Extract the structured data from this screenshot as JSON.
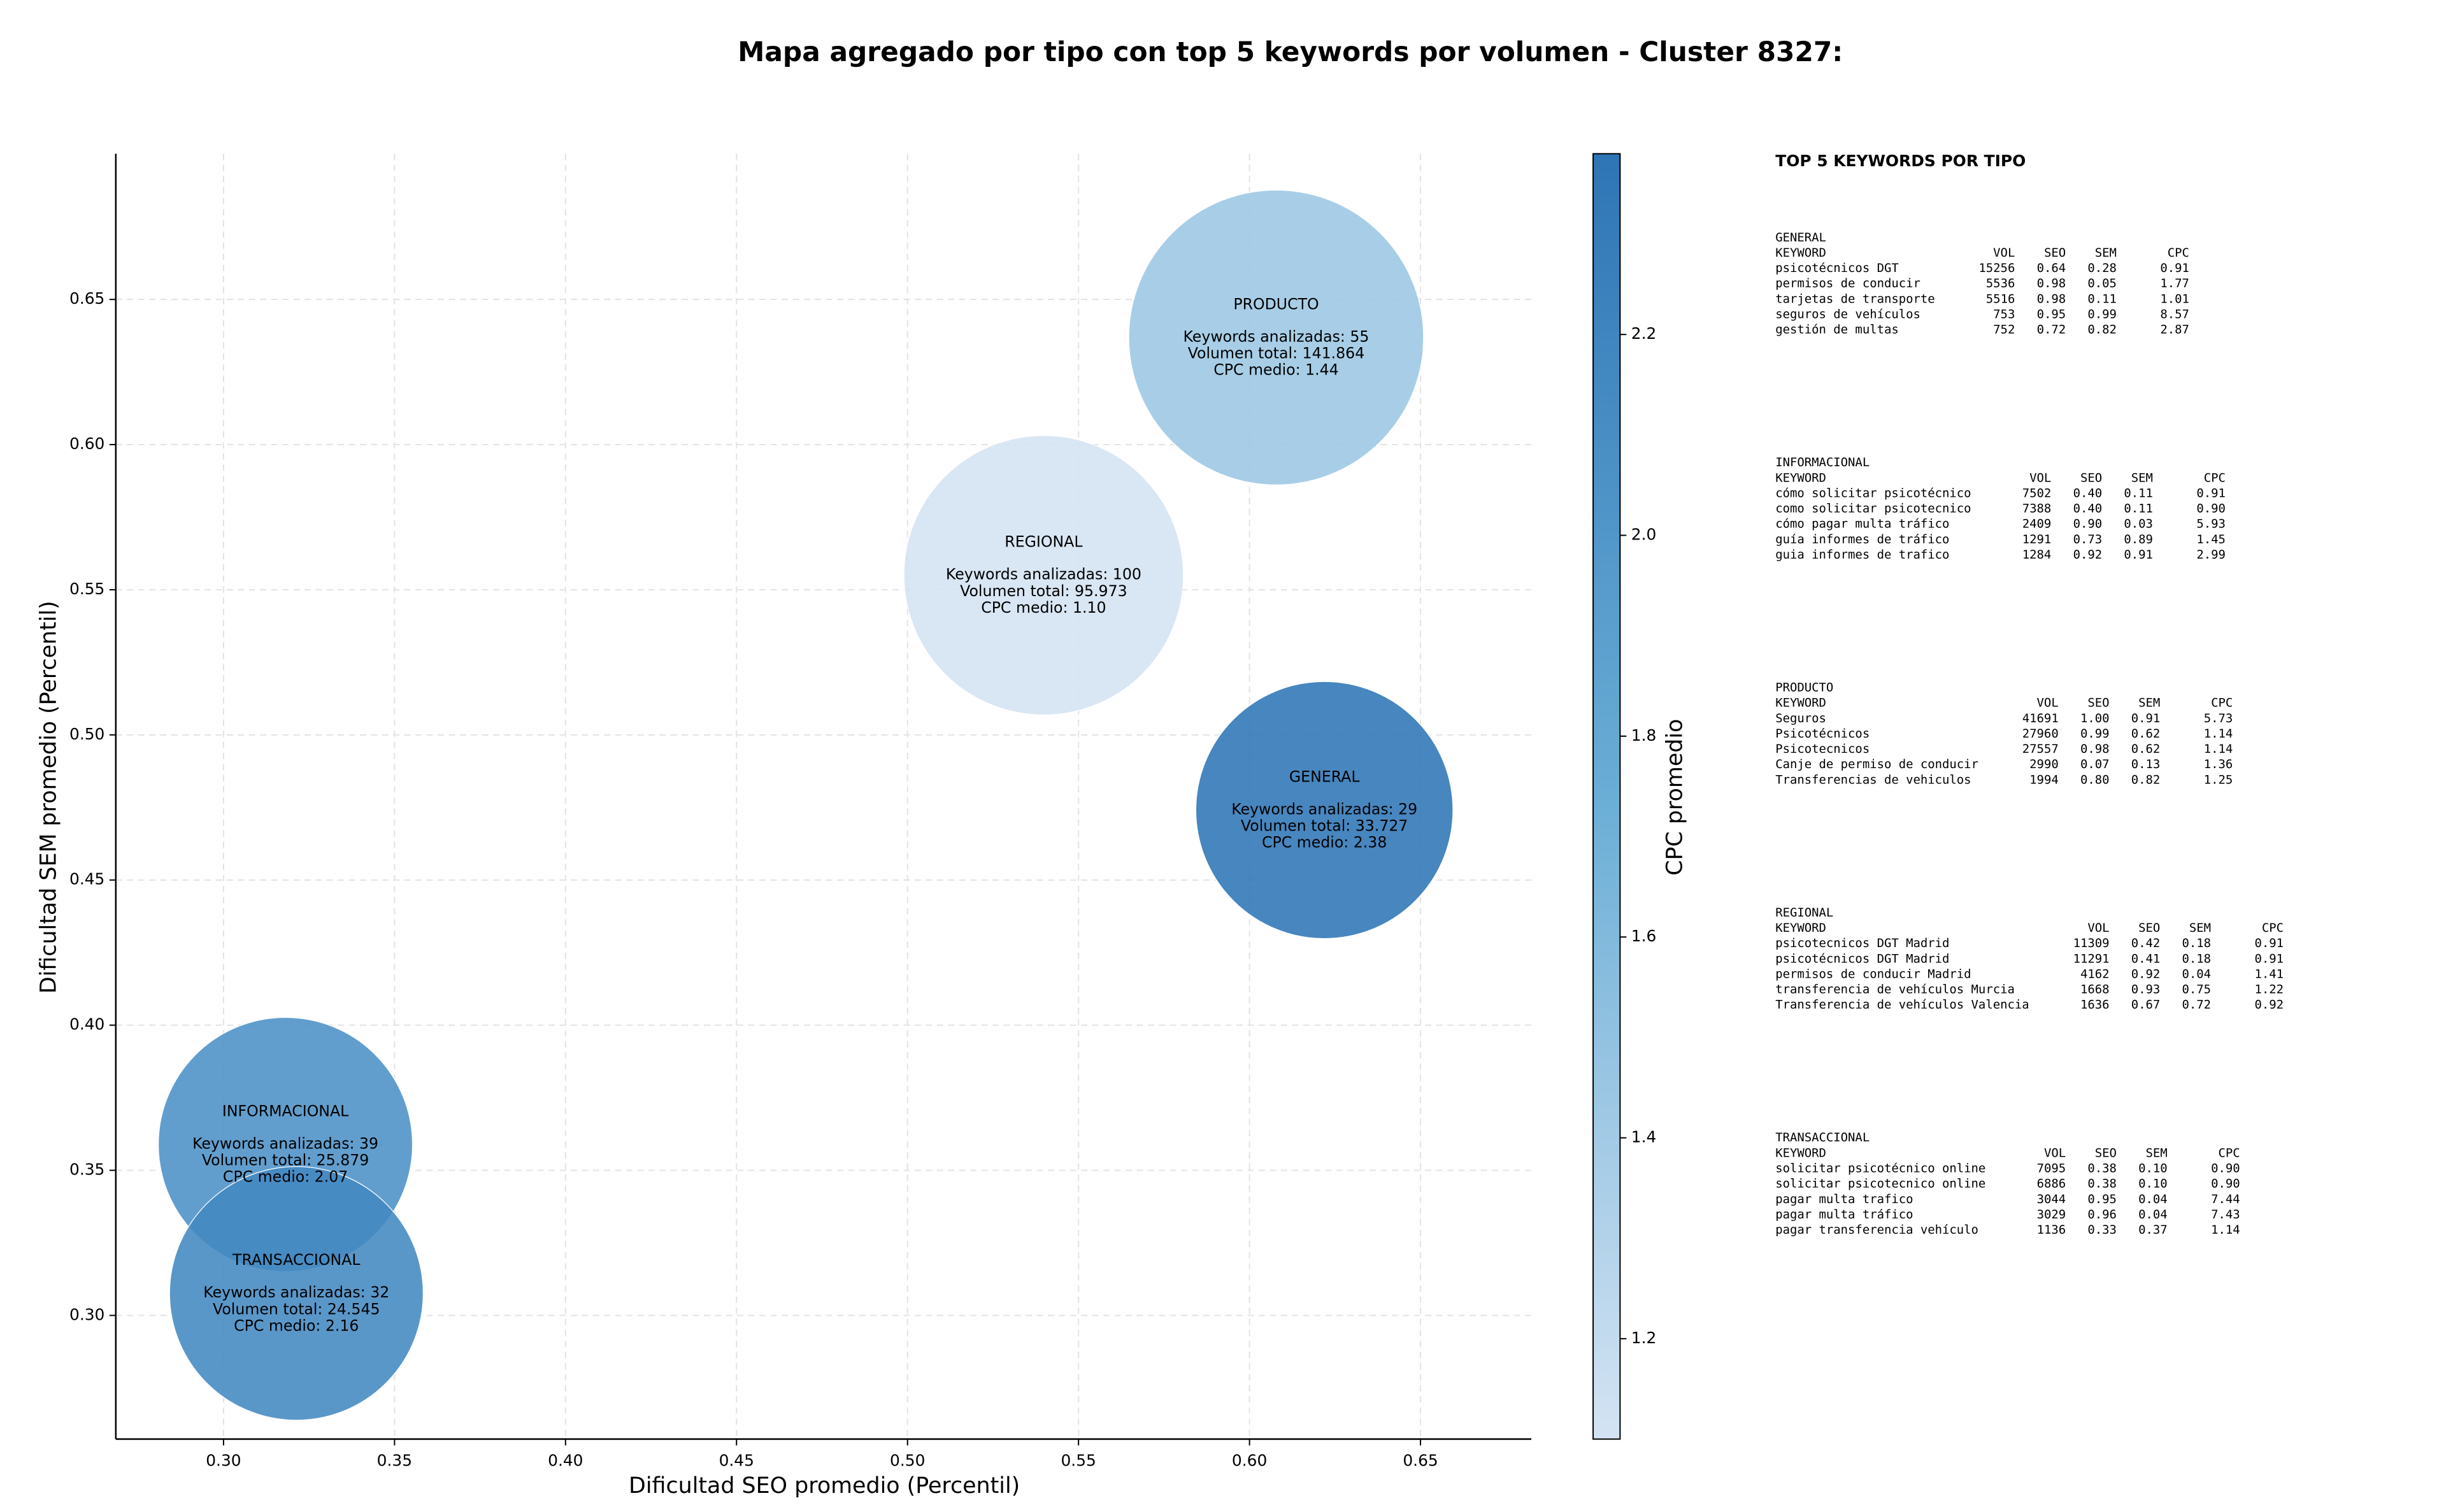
{
  "chart_data": {
    "type": "bubble",
    "title": "Mapa agregado por tipo con top 5 keywords por volumen - Cluster 8327:",
    "x_label": "Dificultad SEO promedio (Percentil)",
    "y_label": "Dificultad SEM promedio (Percentil)",
    "colorbar_label": "CPC promedio",
    "xlim": [
      0.2685,
      0.6824
    ],
    "ylim": [
      0.2574,
      0.7002
    ],
    "clim": [
      1.1,
      2.38
    ],
    "colormap": [
      "#d4e3f3",
      "#6aaed6",
      "#2e75b6"
    ],
    "grid": true,
    "xticks": [
      {
        "value": 0.3,
        "label": "0.30"
      },
      {
        "value": 0.35,
        "label": "0.35"
      },
      {
        "value": 0.4,
        "label": "0.40"
      },
      {
        "value": 0.45,
        "label": "0.45"
      },
      {
        "value": 0.5,
        "label": "0.50"
      },
      {
        "value": 0.55,
        "label": "0.55"
      },
      {
        "value": 0.6,
        "label": "0.60"
      },
      {
        "value": 0.65,
        "label": "0.65"
      }
    ],
    "yticks": [
      {
        "value": 0.3,
        "label": "0.30"
      },
      0.35,
      {
        "value": 0.4,
        "label": "0.40"
      },
      0.45,
      {
        "value": 0.5,
        "label": "0.50"
      },
      0.55,
      {
        "value": 0.6,
        "label": "0.60"
      },
      0.65
    ],
    "cticks": [
      1.2,
      1.4,
      1.6,
      1.8,
      {
        "value": 2,
        "label": "2.0"
      },
      2.2
    ],
    "points": [
      {
        "name": "PRODUCTO",
        "x": 0.6078,
        "y": 0.6369,
        "size": 141864,
        "cpc": 1.44,
        "lines": [
          "Keywords analizadas: 55",
          "Volumen total: 141.864",
          "CPC medio: 1.44"
        ]
      },
      {
        "name": "REGIONAL",
        "x": 0.5398,
        "y": 0.555,
        "size": 95973,
        "cpc": 1.1,
        "lines": [
          "Keywords analizadas: 100",
          "Volumen total: 95.973",
          "CPC medio: 1.10"
        ]
      },
      {
        "name": "GENERAL",
        "x": 0.6219,
        "y": 0.4741,
        "size": 33727,
        "cpc": 2.38,
        "lines": [
          "Keywords analizadas: 29",
          "Volumen total: 33.727",
          "CPC medio: 2.38"
        ]
      },
      {
        "name": "INFORMACIONAL",
        "x": 0.3181,
        "y": 0.3589,
        "size": 25879,
        "cpc": 2.07,
        "lines": [
          "Keywords analizadas: 39",
          "Volumen total: 25.879",
          "CPC medio: 2.07"
        ]
      },
      {
        "name": "TRANSACCIONAL",
        "x": 0.3213,
        "y": 0.3076,
        "size": 24545,
        "cpc": 2.16,
        "lines": [
          "Keywords analizadas: 32",
          "Volumen total: 24.545",
          "CPC medio: 2.16"
        ]
      }
    ]
  },
  "keyword_panel": {
    "title": "TOP 5 KEYWORDS POR TIPO",
    "columns": [
      "KEYWORD",
      "VOL",
      "SEO",
      "SEM",
      "CPC"
    ],
    "groups": [
      {
        "name": "GENERAL",
        "rows": [
          [
            "psicotécnicos DGT",
            "15256",
            "0.64",
            "0.28",
            "0.91"
          ],
          [
            "permisos de conducir",
            "5536",
            "0.98",
            "0.05",
            "1.77"
          ],
          [
            "tarjetas de transporte",
            "5516",
            "0.98",
            "0.11",
            "1.01"
          ],
          [
            "seguros de vehículos",
            "753",
            "0.95",
            "0.99",
            "8.57"
          ],
          [
            "gestión de multas",
            "752",
            "0.72",
            "0.82",
            "2.87"
          ]
        ]
      },
      {
        "name": "INFORMACIONAL",
        "rows": [
          [
            "cómo solicitar psicotécnico",
            "7502",
            "0.40",
            "0.11",
            "0.91"
          ],
          [
            "como solicitar psicotecnico",
            "7388",
            "0.40",
            "0.11",
            "0.90"
          ],
          [
            "cómo pagar multa tráfico",
            "2409",
            "0.90",
            "0.03",
            "5.93"
          ],
          [
            "guía informes de tráfico",
            "1291",
            "0.73",
            "0.89",
            "1.45"
          ],
          [
            "guia informes de trafico",
            "1284",
            "0.92",
            "0.91",
            "2.99"
          ]
        ]
      },
      {
        "name": "PRODUCTO",
        "rows": [
          [
            "Seguros",
            "41691",
            "1.00",
            "0.91",
            "5.73"
          ],
          [
            "Psicotécnicos",
            "27960",
            "0.99",
            "0.62",
            "1.14"
          ],
          [
            "Psicotecnicos",
            "27557",
            "0.98",
            "0.62",
            "1.14"
          ],
          [
            "Canje de permiso de conducir",
            "2990",
            "0.07",
            "0.13",
            "1.36"
          ],
          [
            "Transferencias de vehiculos",
            "1994",
            "0.80",
            "0.82",
            "1.25"
          ]
        ]
      },
      {
        "name": "REGIONAL",
        "rows": [
          [
            "psicotecnicos DGT Madrid",
            "11309",
            "0.42",
            "0.18",
            "0.91"
          ],
          [
            "psicotécnicos DGT Madrid",
            "11291",
            "0.41",
            "0.18",
            "0.91"
          ],
          [
            "permisos de conducir Madrid",
            "4162",
            "0.92",
            "0.04",
            "1.41"
          ],
          [
            "transferencia de vehículos Murcia",
            "1668",
            "0.93",
            "0.75",
            "1.22"
          ],
          [
            "Transferencia de vehículos Valencia",
            "1636",
            "0.67",
            "0.72",
            "0.92"
          ]
        ]
      },
      {
        "name": "TRANSACCIONAL",
        "rows": [
          [
            "solicitar psicotécnico online",
            "7095",
            "0.38",
            "0.10",
            "0.90"
          ],
          [
            "solicitar psicotecnico online",
            "6886",
            "0.38",
            "0.10",
            "0.90"
          ],
          [
            "pagar multa trafico",
            "3044",
            "0.95",
            "0.04",
            "7.44"
          ],
          [
            "pagar multa tráfico",
            "3029",
            "0.96",
            "0.04",
            "7.43"
          ],
          [
            "pagar transferencia vehículo",
            "1136",
            "0.33",
            "0.37",
            "1.14"
          ]
        ]
      }
    ]
  }
}
